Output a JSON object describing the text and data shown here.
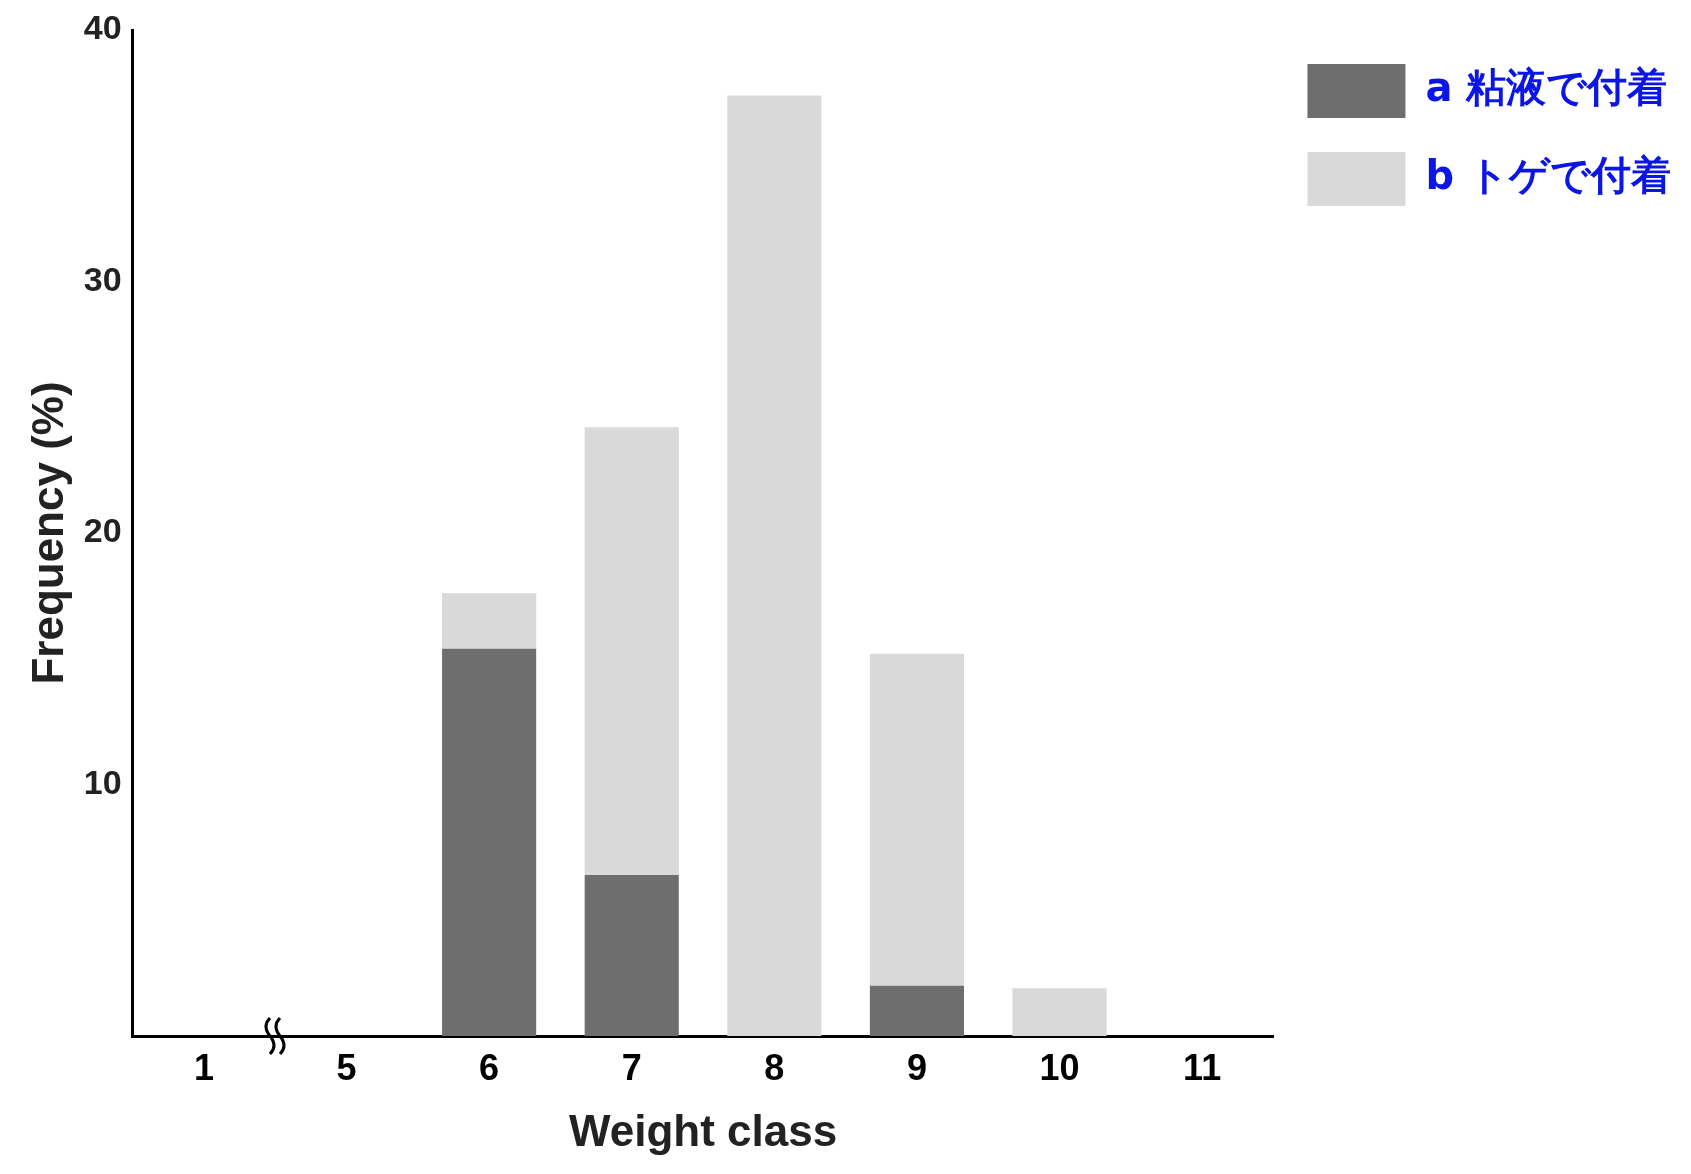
{
  "chart_data": {
    "type": "bar",
    "stacked": true,
    "xlabel": "Weight class",
    "ylabel": "Frequency (%)",
    "categories": [
      "1",
      "5",
      "6",
      "7",
      "8",
      "9",
      "10",
      "11"
    ],
    "series": [
      {
        "name": "a 粘液で付着",
        "color": "#6e6e6e",
        "values": [
          0,
          0,
          15.4,
          6.4,
          0,
          2.0,
          0,
          0
        ]
      },
      {
        "name": "b トゲで付着",
        "color": "#d9d9d9",
        "values": [
          0,
          0,
          2.2,
          17.8,
          37.4,
          13.2,
          1.9,
          0
        ]
      }
    ],
    "ylim": [
      0,
      40
    ],
    "yticks": [
      10,
      20,
      30,
      40
    ],
    "grid": false,
    "legend": "top right"
  }
}
